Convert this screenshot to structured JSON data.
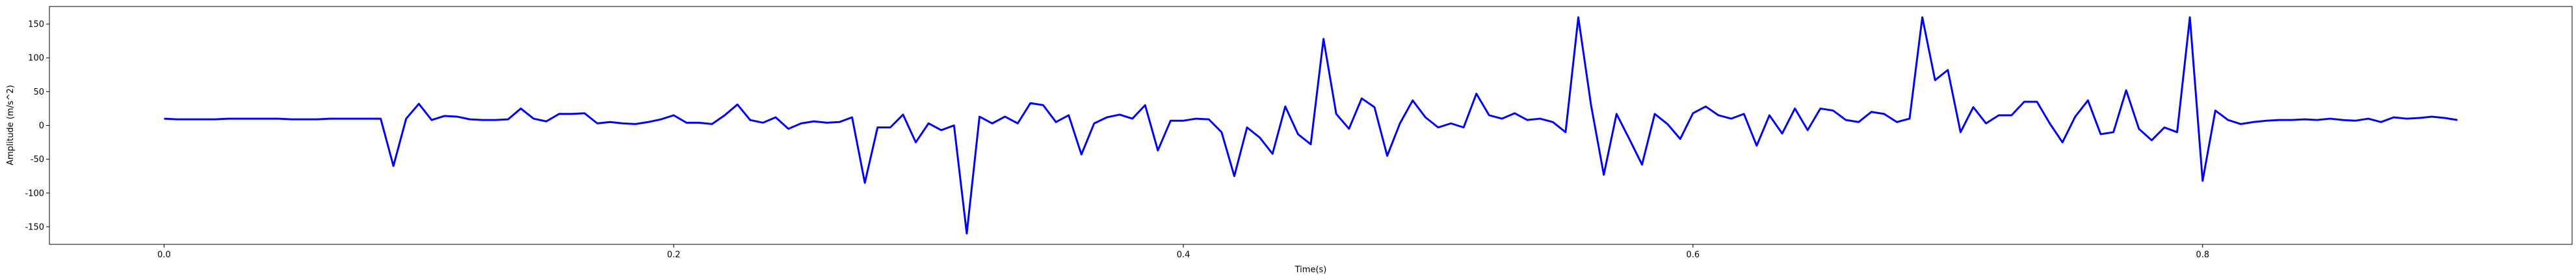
{
  "chart_data": {
    "type": "line",
    "xlabel": "Time(s)",
    "ylabel": "Amplitude (m/s^2)",
    "color": "#0000ff",
    "x": [
      0,
      0.005,
      0.01,
      0.015,
      0.02,
      0.025,
      0.03,
      0.035,
      0.04,
      0.045,
      0.05,
      0.055,
      0.06,
      0.065,
      0.07,
      0.075,
      0.08,
      0.085,
      0.09,
      0.095,
      0.1,
      0.105,
      0.11,
      0.115,
      0.12,
      0.125,
      0.13,
      0.135,
      0.14,
      0.145,
      0.15,
      0.155,
      0.16,
      0.165,
      0.17,
      0.175,
      0.18,
      0.185,
      0.19,
      0.195,
      0.2,
      0.205,
      0.21,
      0.215,
      0.22,
      0.225,
      0.23,
      0.235,
      0.24,
      0.245,
      0.25,
      0.255,
      0.26,
      0.265,
      0.27,
      0.275,
      0.28,
      0.285,
      0.29,
      0.295,
      0.3,
      0.305,
      0.31,
      0.315,
      0.32,
      0.325,
      0.33,
      0.335,
      0.34,
      0.345,
      0.35,
      0.355,
      0.36,
      0.365,
      0.37,
      0.375,
      0.38,
      0.385,
      0.39,
      0.395,
      0.4,
      0.405,
      0.41,
      0.415,
      0.42,
      0.425,
      0.43,
      0.435,
      0.44,
      0.445,
      0.45,
      0.455,
      0.46,
      0.465,
      0.47,
      0.475,
      0.48,
      0.485,
      0.49,
      0.495,
      0.5,
      0.505,
      0.51,
      0.515,
      0.52,
      0.525,
      0.53,
      0.535,
      0.54,
      0.545,
      0.55,
      0.555,
      0.56,
      0.565,
      0.57,
      0.575,
      0.58,
      0.585,
      0.59,
      0.595,
      0.6,
      0.605,
      0.61,
      0.615,
      0.62,
      0.625,
      0.63,
      0.635,
      0.64,
      0.645,
      0.65,
      0.655,
      0.66,
      0.665,
      0.67,
      0.675,
      0.68,
      0.685,
      0.69,
      0.695,
      0.7,
      0.705,
      0.71,
      0.715,
      0.72,
      0.725,
      0.73,
      0.735,
      0.74,
      0.745,
      0.75,
      0.755,
      0.76,
      0.765,
      0.77,
      0.775,
      0.78,
      0.785,
      0.79,
      0.795,
      0.8,
      0.805,
      0.81,
      0.815,
      0.82,
      0.825,
      0.83,
      0.835,
      0.84,
      0.845,
      0.85,
      0.855,
      0.86,
      0.865,
      0.87,
      0.875,
      0.88,
      0.885,
      0.89,
      0.895,
      0.9
    ],
    "values": [
      10,
      9,
      9,
      9,
      9,
      10,
      10,
      10,
      10,
      10,
      9,
      9,
      9,
      10,
      10,
      10,
      10,
      10,
      -60,
      10,
      32,
      8,
      14,
      13,
      9,
      8,
      8,
      9,
      25,
      10,
      6,
      17,
      17,
      18,
      3,
      5,
      3,
      2,
      5,
      9,
      15,
      4,
      4,
      2,
      15,
      31,
      8,
      4,
      12,
      -5,
      3,
      6,
      4,
      5,
      12,
      -85,
      -3,
      -3,
      16,
      -25,
      3,
      -7,
      0,
      -160,
      13,
      3,
      13,
      3,
      33,
      30,
      5,
      15,
      -43,
      3,
      12,
      16,
      10,
      30,
      -37,
      7,
      7,
      10,
      9,
      -10,
      -75,
      -3,
      -18,
      -42,
      28,
      -13,
      -28,
      128,
      17,
      -5,
      40,
      27,
      -45,
      3,
      37,
      12,
      -3,
      3,
      -3,
      47,
      15,
      10,
      18,
      8,
      10,
      5,
      -10,
      160,
      30,
      -73,
      17,
      -20,
      -58,
      17,
      2,
      -20,
      18,
      28,
      15,
      10,
      17,
      -30,
      15,
      -12,
      25,
      -7,
      25,
      22,
      8,
      5,
      20,
      17,
      5,
      10,
      160,
      67,
      82,
      -10,
      27,
      3,
      15,
      15,
      35,
      35,
      3,
      -25,
      13,
      37,
      -13,
      -10,
      52,
      -5,
      -22,
      -3,
      -10,
      160,
      -82,
      22,
      8,
      2,
      5,
      7,
      8,
      8,
      9,
      8,
      10,
      8,
      7,
      10,
      5,
      12,
      10,
      11,
      13,
      11,
      8
    ],
    "xlim": [
      -0.045,
      0.945
    ],
    "xticks": [
      {
        "value": 0,
        "label": "0.0"
      },
      0.2,
      0.4,
      0.6,
      0.8
    ],
    "ylim": [
      -176,
      176
    ],
    "yticks": [
      -150,
      -100,
      -50,
      0,
      50,
      100,
      150
    ]
  }
}
